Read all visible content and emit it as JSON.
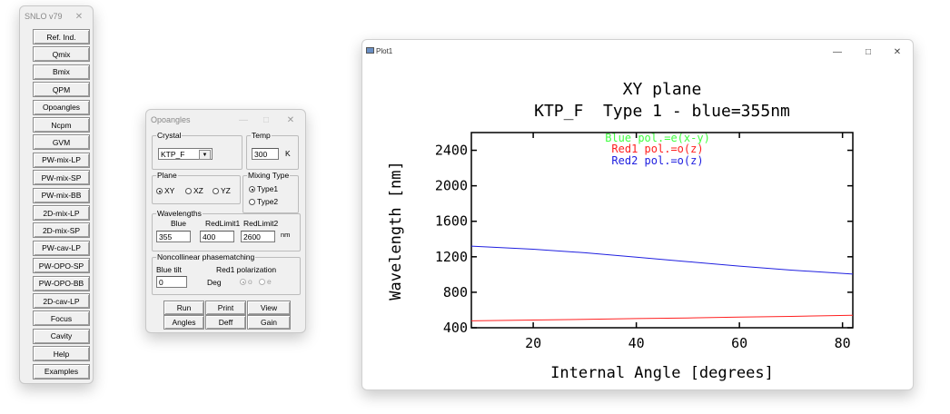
{
  "snlo": {
    "title": "SNLO v79",
    "close": "✕",
    "buttons": [
      "Ref. Ind.",
      "Qmix",
      "Bmix",
      "QPM",
      "Opoangles",
      "Ncpm",
      "GVM",
      "PW-mix-LP",
      "PW-mix-SP",
      "PW-mix-BB",
      "2D-mix-LP",
      "2D-mix-SP",
      "PW-cav-LP",
      "PW-OPO-SP",
      "PW-OPO-BB",
      "2D-cav-LP",
      "Focus",
      "Cavity",
      "Help",
      "Examples"
    ]
  },
  "opo": {
    "title": "Opoangles",
    "minimize": "—",
    "maximize": "□",
    "close": "✕",
    "crystal_label": "Crystal",
    "crystal_value": "KTP_F",
    "dropdown_glyph": "▼",
    "temp_label": "Temp",
    "temp_value": "300",
    "temp_unit": "K",
    "plane_label": "Plane",
    "plane_options": [
      "XY",
      "XZ",
      "YZ"
    ],
    "mixing_label": "Mixing Type",
    "mixing_options": [
      "Type1",
      "Type2"
    ],
    "wavelengths_label": "Wavelengths",
    "col_blue": "Blue",
    "col_red1": "RedLimit1",
    "col_red2": "RedLimit2",
    "blue_value": "355",
    "red1_value": "400",
    "red2_value": "2600",
    "nm_unit": "nm",
    "noncollinear_label": "Noncollinear phasematching",
    "blue_tilt_label": "Blue tilt",
    "blue_tilt_value": "0",
    "deg_unit": "Deg",
    "red1_pol_label": "Red1 polarization",
    "pol_o": "o",
    "pol_e": "e",
    "btn_run": "Run",
    "btn_print": "Print",
    "btn_view": "View",
    "btn_angles": "Angles",
    "btn_deff": "Deff",
    "btn_gain": "Gain"
  },
  "plot": {
    "title": "Plot1",
    "minimize": "—",
    "maximize": "□",
    "close": "✕"
  },
  "chart_data": {
    "type": "line",
    "title": "XY plane",
    "subtitle": "KTP_F  Type 1 - blue=355nm",
    "xlabel": "Internal Angle [degrees]",
    "ylabel": "Wavelength [nm]",
    "xlim": [
      8,
      82
    ],
    "ylim": [
      400,
      2600
    ],
    "xticks": [
      20,
      40,
      60,
      80
    ],
    "yticks": [
      400,
      800,
      1200,
      1600,
      2000,
      2400
    ],
    "legend": [
      {
        "label": "Blue pol.=e(x-y)",
        "color": "#40ff40"
      },
      {
        "label": "Red1 pol.=o(z)",
        "color": "#ff2020"
      },
      {
        "label": "Red2 pol.=o(z)",
        "color": "#2020e0"
      }
    ],
    "series": [
      {
        "name": "Red1",
        "color": "#ff2020",
        "x": [
          8,
          20,
          30,
          40,
          50,
          60,
          70,
          82
        ],
        "y": [
          478,
          487,
          494,
          503,
          511,
          520,
          528,
          540
        ]
      },
      {
        "name": "Red2",
        "color": "#2020e0",
        "x": [
          8,
          20,
          30,
          40,
          50,
          60,
          70,
          82
        ],
        "y": [
          1320,
          1285,
          1245,
          1195,
          1145,
          1095,
          1050,
          1005
        ]
      }
    ]
  }
}
